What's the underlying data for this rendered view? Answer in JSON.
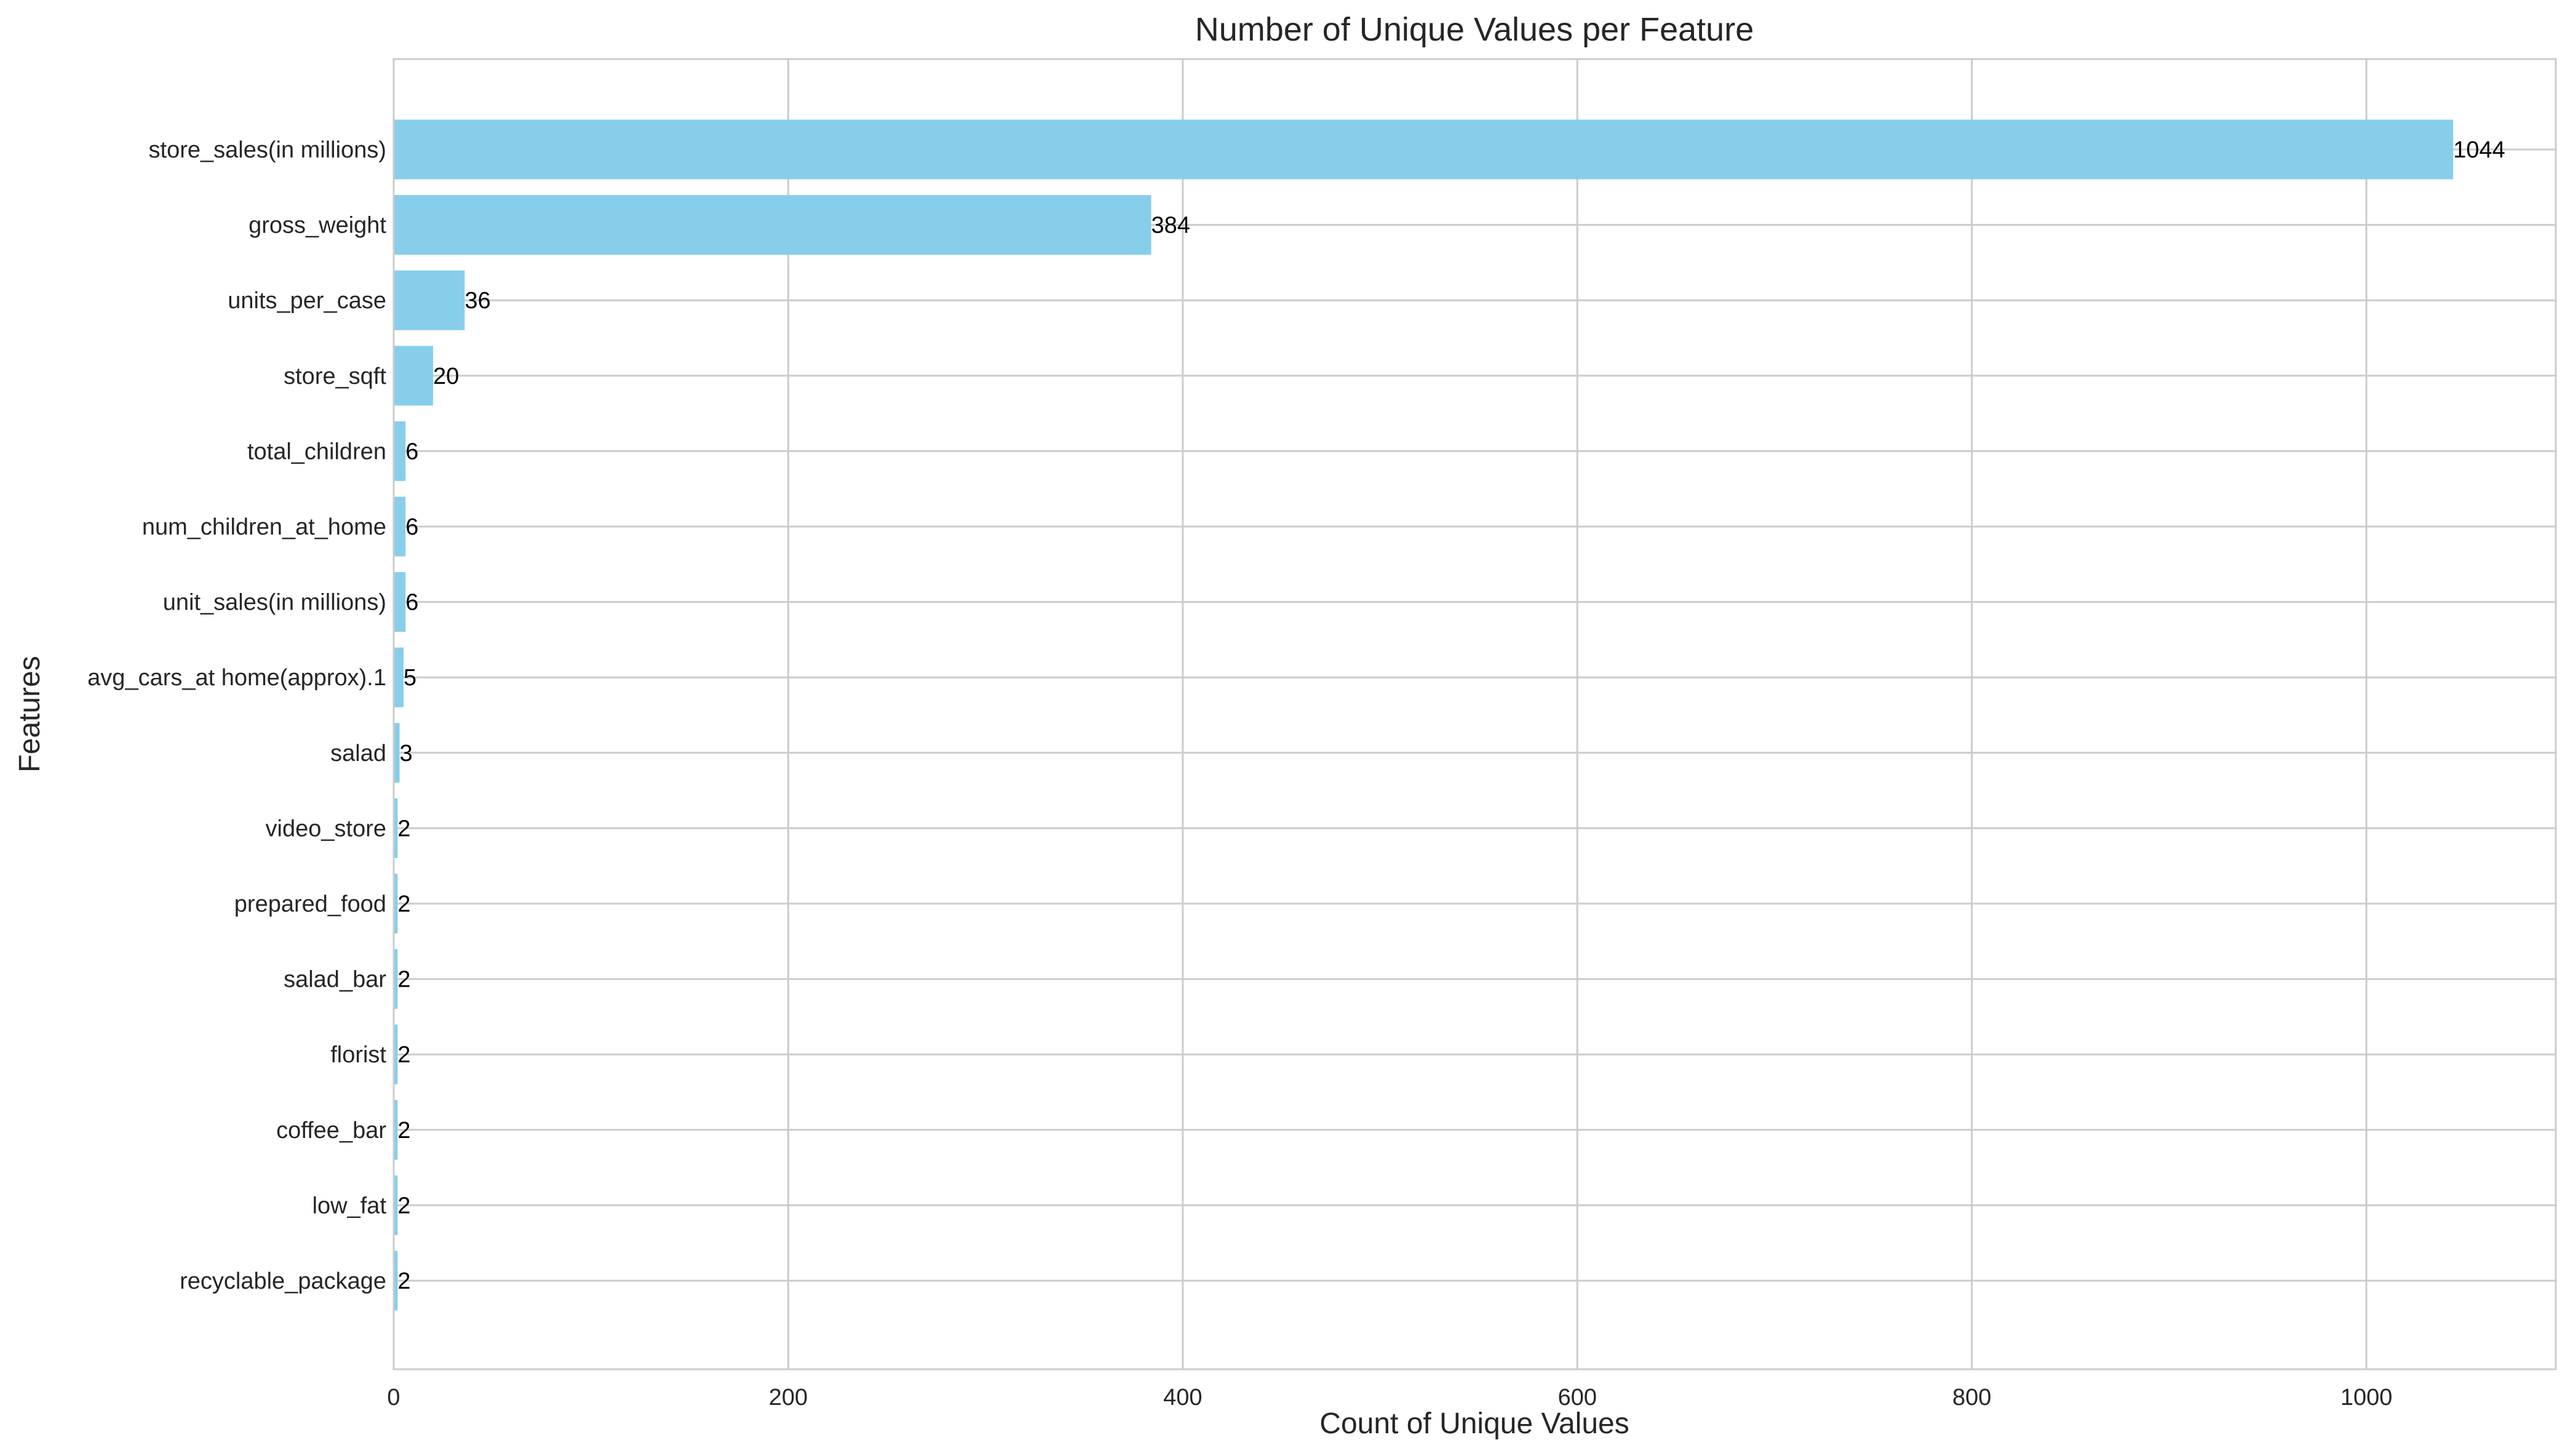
{
  "chart_data": {
    "type": "bar",
    "orientation": "horizontal",
    "title": "Number of Unique Values per Feature",
    "xlabel": "Count of Unique Values",
    "ylabel": "Features",
    "xlim": [
      0,
      1096
    ],
    "xticks": [
      0,
      200,
      400,
      600,
      800,
      1000
    ],
    "grid": true,
    "bar_color": "#87ceeb",
    "categories": [
      "store_sales(in millions)",
      "gross_weight",
      "units_per_case",
      "store_sqft",
      "total_children",
      "num_children_at_home",
      "unit_sales(in millions)",
      "avg_cars_at home(approx).1",
      "salad",
      "video_store",
      "prepared_food",
      "salad_bar",
      "florist",
      "coffee_bar",
      "low_fat",
      "recyclable_package"
    ],
    "values": [
      1044,
      384,
      36,
      20,
      6,
      6,
      6,
      5,
      3,
      2,
      2,
      2,
      2,
      2,
      2,
      2
    ],
    "data_labels": [
      "1044",
      "384",
      "36",
      "20",
      "6",
      "6",
      "6",
      "5",
      "3",
      "2",
      "2",
      "2",
      "2",
      "2",
      "2",
      "2"
    ]
  }
}
